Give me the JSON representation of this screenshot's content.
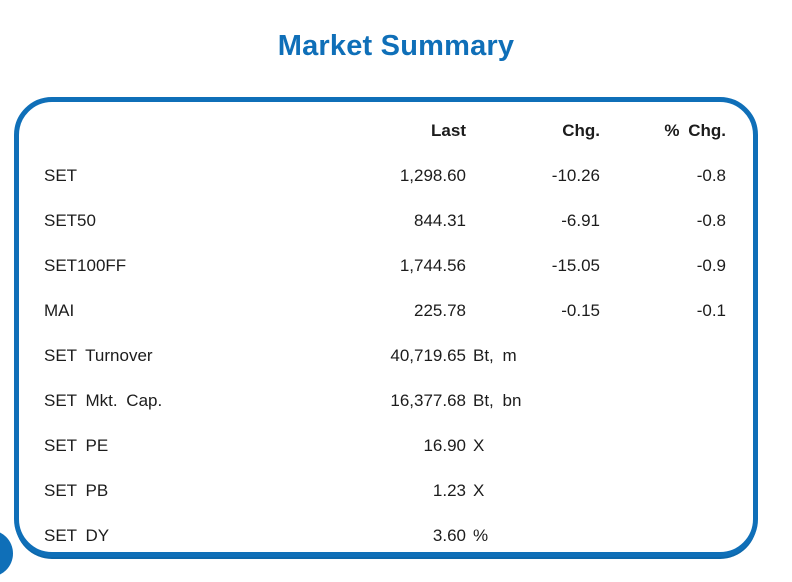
{
  "page": {
    "title": "Market Summary"
  },
  "colors": {
    "accent_blue": "#0f6fb8",
    "text": "#1c1c1c"
  },
  "table": {
    "headers": {
      "label": "",
      "last": "Last",
      "chg": "Chg.",
      "pct_chg": "% Chg."
    },
    "rows": [
      {
        "label": "SET",
        "last": "1,298.60",
        "unit": "",
        "chg": "-10.26",
        "pct": "-0.8"
      },
      {
        "label": "SET50",
        "last": "844.31",
        "unit": "",
        "chg": "-6.91",
        "pct": "-0.8"
      },
      {
        "label": "SET100FF",
        "last": "1,744.56",
        "unit": "",
        "chg": "-15.05",
        "pct": "-0.9"
      },
      {
        "label": "MAI",
        "last": "225.78",
        "unit": "",
        "chg": "-0.15",
        "pct": "-0.1"
      },
      {
        "label": "SET Turnover",
        "last": "40,719.65",
        "unit": "Bt, m",
        "chg": "",
        "pct": ""
      },
      {
        "label": "SET Mkt. Cap.",
        "last": "16,377.68",
        "unit": "Bt, bn",
        "chg": "",
        "pct": ""
      },
      {
        "label": "SET PE",
        "last": "16.90",
        "unit": "X",
        "chg": "",
        "pct": ""
      },
      {
        "label": "SET PB",
        "last": "1.23",
        "unit": "X",
        "chg": "",
        "pct": ""
      },
      {
        "label": "SET DY",
        "last": "3.60",
        "unit": "%",
        "chg": "",
        "pct": ""
      }
    ]
  },
  "chart_data": {
    "type": "table",
    "title": "Market Summary",
    "columns": [
      "",
      "Last",
      "Chg.",
      "% Chg."
    ],
    "rows": [
      [
        "SET",
        "1,298.60",
        "-10.26",
        "-0.8"
      ],
      [
        "SET50",
        "844.31",
        "-6.91",
        "-0.8"
      ],
      [
        "SET100FF",
        "1,744.56",
        "-15.05",
        "-0.9"
      ],
      [
        "MAI",
        "225.78",
        "-0.15",
        "-0.1"
      ],
      [
        "SET Turnover",
        "40,719.65 Bt, m",
        "",
        ""
      ],
      [
        "SET Mkt. Cap.",
        "16,377.68 Bt, bn",
        "",
        ""
      ],
      [
        "SET PE",
        "16.90 X",
        "",
        ""
      ],
      [
        "SET PB",
        "1.23 X",
        "",
        ""
      ],
      [
        "SET DY",
        "3.60 %",
        "",
        ""
      ]
    ]
  }
}
